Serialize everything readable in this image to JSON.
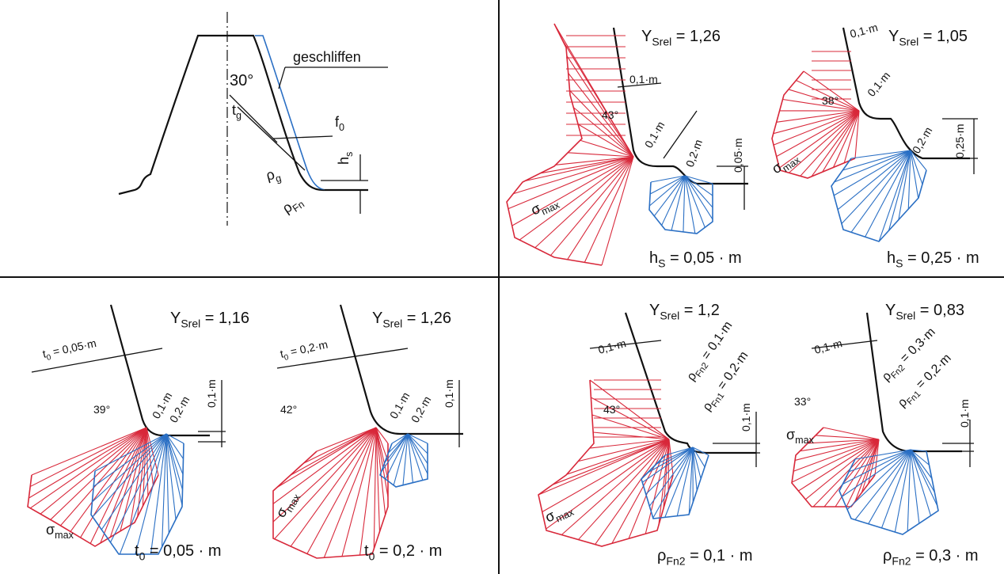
{
  "profile": {
    "angle": "30°",
    "ground": "geschliffen",
    "tg": {
      "base": "t",
      "sub": "g"
    },
    "f0": {
      "base": "f",
      "sub": "0"
    },
    "hs": {
      "base": "h",
      "sub": "s"
    },
    "rho_g": {
      "base": "ρ",
      "sub": "g"
    },
    "rho_fn": {
      "base": "ρ",
      "sub": "Fn"
    }
  },
  "quadrants": [
    {
      "cases": [
        {
          "y": {
            "base": "Y",
            "sub": "Srel",
            "rest": " = 1,26"
          },
          "dims": [
            "0,1·m",
            "0,1·m",
            "0,2·m",
            "0,05·m"
          ],
          "angle": "43°",
          "sigma": {
            "base": "σ",
            "sub": "max"
          },
          "caption": {
            "base": "h",
            "sub": "S",
            "rest": " = 0,05 · m"
          }
        },
        {
          "y": {
            "base": "Y",
            "sub": "Srel",
            "rest": " = 1,05"
          },
          "dims": [
            "0,1·m",
            "0,1·m",
            "0,2·m",
            "0,25·m"
          ],
          "angle": "38°",
          "sigma": {
            "base": "σ",
            "sub": "max"
          },
          "caption": {
            "base": "h",
            "sub": "S",
            "rest": " = 0,25 · m"
          }
        }
      ]
    },
    {
      "cases": [
        {
          "y": {
            "base": "Y",
            "sub": "Srel",
            "rest": " = 1,16"
          },
          "t0": {
            "base": "t",
            "sub": "0",
            "rest": " = 0,05·m"
          },
          "dims": [
            "0,1·m",
            "0,2·m",
            "0,1·m"
          ],
          "angle": "39°",
          "sigma": {
            "base": "σ",
            "sub": "max"
          },
          "caption": {
            "base": "t",
            "sub": "0",
            "rest": " = 0,05 · m"
          }
        },
        {
          "y": {
            "base": "Y",
            "sub": "Srel",
            "rest": " = 1,26"
          },
          "t0": {
            "base": "t",
            "sub": "0",
            "rest": " = 0,2·m"
          },
          "dims": [
            "0,1·m",
            "0,2·m",
            "0,1·m"
          ],
          "angle": "42°",
          "sigma": {
            "base": "σ",
            "sub": "max"
          },
          "caption": {
            "base": "t",
            "sub": "0",
            "rest": " = 0,2 · m"
          }
        }
      ]
    },
    {
      "cases": [
        {
          "y": {
            "base": "Y",
            "sub": "Srel",
            "rest": " = 1,2"
          },
          "dims": [
            "0,1·m",
            {
              "base": "ρ",
              "sub": "Fn2",
              "rest": " = 0,1·m"
            },
            {
              "base": "ρ",
              "sub": "Fn1",
              "rest": " = 0,2·m"
            },
            "0,1·m"
          ],
          "angle": "43°",
          "sigma": {
            "base": "σ",
            "sub": "max"
          },
          "caption": {
            "base": "ρ",
            "sub": "Fn2",
            "rest": " = 0,1 · m"
          }
        },
        {
          "y": {
            "base": "Y",
            "sub": "Srel",
            "rest": " = 0,83"
          },
          "dims": [
            "0,1·m",
            {
              "base": "ρ",
              "sub": "Fn2",
              "rest": " = 0,3·m"
            },
            {
              "base": "ρ",
              "sub": "Fn1",
              "rest": " = 0,2·m"
            },
            "0,1·m"
          ],
          "angle": "33°",
          "sigma": {
            "base": "σ",
            "sub": "max"
          },
          "caption": {
            "base": "ρ",
            "sub": "Fn2",
            "rest": " = 0,3 · m"
          }
        }
      ]
    }
  ]
}
